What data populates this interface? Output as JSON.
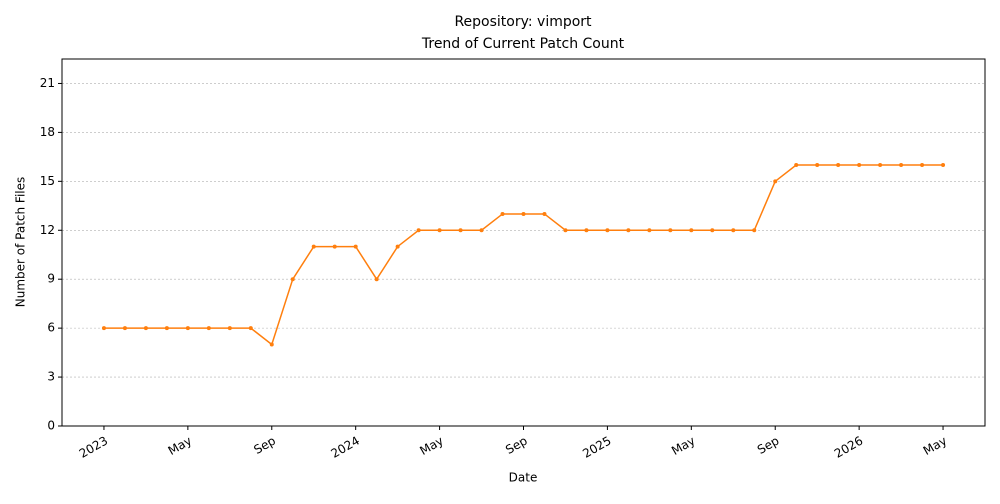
{
  "chart_data": {
    "type": "line",
    "title": "Repository: vimport",
    "subtitle": "Trend of Current Patch Count",
    "x_label": "Date",
    "y_label": "Number of Patch Files",
    "x": [
      "2023-01",
      "2023-02",
      "2023-03",
      "2023-04",
      "2023-05",
      "2023-06",
      "2023-07",
      "2023-08",
      "2023-09",
      "2023-10",
      "2023-11",
      "2023-12",
      "2024-01",
      "2024-02",
      "2024-03",
      "2024-04",
      "2024-05",
      "2024-06",
      "2024-07",
      "2024-08",
      "2024-09",
      "2024-10",
      "2024-11",
      "2024-12",
      "2025-01",
      "2025-02",
      "2025-03",
      "2025-04",
      "2025-05",
      "2025-06",
      "2025-07",
      "2025-08",
      "2025-09",
      "2025-10",
      "2025-11",
      "2025-12",
      "2026-01",
      "2026-02",
      "2026-03",
      "2026-04",
      "2026-05"
    ],
    "values": [
      6,
      6,
      6,
      6,
      6,
      6,
      6,
      6,
      5,
      9,
      11,
      11,
      11,
      9,
      11,
      12,
      12,
      12,
      12,
      13,
      13,
      13,
      12,
      12,
      12,
      12,
      12,
      12,
      12,
      12,
      12,
      12,
      15,
      16,
      16,
      16,
      16,
      16,
      16,
      16,
      16
    ],
    "color": "#ff7f0e",
    "xlim": [
      "2022-11",
      "2026-07"
    ],
    "xticks": [
      {
        "value": "2023-01",
        "label": "2023"
      },
      {
        "value": "2023-05",
        "label": "May"
      },
      {
        "value": "2023-09",
        "label": "Sep"
      },
      {
        "value": "2024-01",
        "label": "2024"
      },
      {
        "value": "2024-05",
        "label": "May"
      },
      {
        "value": "2024-09",
        "label": "Sep"
      },
      {
        "value": "2025-01",
        "label": "2025"
      },
      {
        "value": "2025-05",
        "label": "May"
      },
      {
        "value": "2025-09",
        "label": "Sep"
      },
      {
        "value": "2026-01",
        "label": "2026"
      },
      {
        "value": "2026-05",
        "label": "May"
      }
    ],
    "ylim": [
      0,
      22.5
    ],
    "yticks": [
      0,
      3,
      6,
      9,
      12,
      15,
      18,
      21
    ],
    "grid": true
  }
}
